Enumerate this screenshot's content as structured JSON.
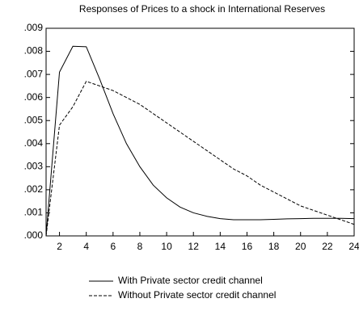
{
  "chart_data": {
    "type": "line",
    "title": "Responses of Prices to a shock in International Reserves",
    "x": [
      1,
      2,
      3,
      4,
      5,
      6,
      7,
      8,
      9,
      10,
      11,
      12,
      13,
      14,
      15,
      16,
      17,
      18,
      19,
      20,
      21,
      22,
      23,
      24
    ],
    "series": [
      {
        "name": "With Private sector credit channel",
        "color": "#000000",
        "dash": "solid",
        "values": [
          0,
          0.0071,
          0.00822,
          0.0082,
          0.0068,
          0.0053,
          0.004,
          0.003,
          0.0022,
          0.00165,
          0.00125,
          0.001,
          0.00085,
          0.00075,
          0.0007,
          0.0007,
          0.0007,
          0.00072,
          0.00074,
          0.00075,
          0.00076,
          0.00076,
          0.00076,
          0.00075
        ]
      },
      {
        "name": "Without Private sector credit channel",
        "color": "#000000",
        "dash": "dashed",
        "values": [
          0,
          0.0048,
          0.0056,
          0.0067,
          0.0065,
          0.0063,
          0.006,
          0.0057,
          0.0053,
          0.0049,
          0.0045,
          0.0041,
          0.0037,
          0.0033,
          0.0029,
          0.0026,
          0.0022,
          0.0019,
          0.0016,
          0.0013,
          0.0011,
          0.0009,
          0.0007,
          0.0005
        ]
      }
    ],
    "xlim": [
      1,
      24
    ],
    "xticks": [
      2,
      4,
      6,
      8,
      10,
      12,
      14,
      16,
      18,
      20,
      22,
      24
    ],
    "ylim": [
      0,
      0.009
    ],
    "yticks": [
      {
        "value": 0,
        "label": ".000"
      },
      {
        "value": 0.001,
        "label": ".001"
      },
      {
        "value": 0.002,
        "label": ".002"
      },
      {
        "value": 0.003,
        "label": ".003"
      },
      {
        "value": 0.004,
        "label": ".004"
      },
      {
        "value": 0.005,
        "label": ".005"
      },
      {
        "value": 0.006,
        "label": ".006"
      },
      {
        "value": 0.007,
        "label": ".007"
      },
      {
        "value": 0.008,
        "label": ".008"
      },
      {
        "value": 0.009,
        "label": ".009"
      }
    ]
  }
}
